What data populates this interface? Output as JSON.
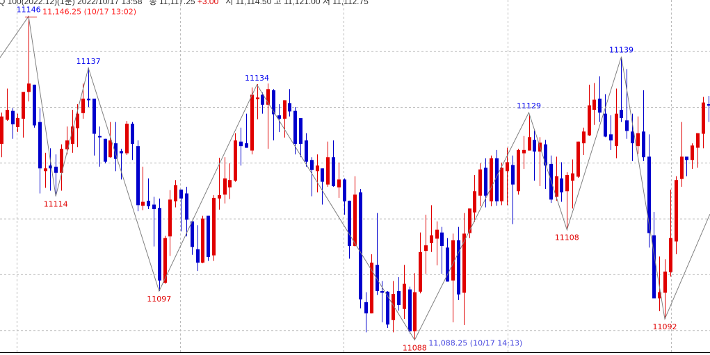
{
  "header": {
    "symbol_info": "Q 100(2022.12)(1분) 2022/10/17 13:58",
    "close_label": "종",
    "close_value": "11,117.25",
    "change": "+3.00",
    "open_label": "시",
    "open_value": "11,114.50",
    "high_label": "고",
    "high_value": "11,121.00",
    "low_label": "저",
    "low_value": "11,112.75"
  },
  "colors": {
    "up": "#e00000",
    "down": "#0000cc",
    "zigzag": "#808080",
    "grid": "#bbbbbb",
    "high_label": "#0000ee",
    "low_label": "#e00000",
    "max_note": "#ff2020",
    "min_note": "#4a4adf"
  },
  "chart_data": {
    "type": "candlestick",
    "ylim": [
      11085,
      11150
    ],
    "grid": true,
    "y_gridlines": [
      11090,
      11100,
      11110,
      11120,
      11130,
      11140
    ],
    "ohlc_order": [
      "open",
      "high",
      "low",
      "close"
    ],
    "candles": [
      [
        11123.4,
        11129.0,
        11121.0,
        11128.3
      ],
      [
        11127.7,
        11133.3,
        11127.5,
        11129.5
      ],
      [
        11129.3,
        11129.8,
        11124.3,
        11126.9
      ],
      [
        11126.4,
        11128.8,
        11125.5,
        11128.0
      ],
      [
        11127.9,
        11132.7,
        11124.5,
        11132.7
      ],
      [
        11132.7,
        11146.25,
        11131.0,
        11134.2
      ],
      [
        11134.0,
        11134.0,
        11126.3,
        11126.7
      ],
      [
        11127.3,
        11129.8,
        11114.5,
        11119.0
      ],
      [
        11118.5,
        11121.8,
        11115.5,
        11119.0
      ],
      [
        11119.5,
        11122.6,
        11115.0,
        11119.0
      ],
      [
        11119.3,
        11121.5,
        11114.0,
        11118.2
      ],
      [
        11118.2,
        11123.3,
        11115.0,
        11122.5
      ],
      [
        11122.4,
        11126.5,
        11121.5,
        11124.0
      ],
      [
        11123.4,
        11129.5,
        11121.8,
        11126.5
      ],
      [
        11126.2,
        11130.5,
        11122.8,
        11128.8
      ],
      [
        11128.9,
        11134.2,
        11127.9,
        11131.5
      ],
      [
        11131.5,
        11137.0,
        11130.0,
        11131.2
      ],
      [
        11131.5,
        11131.5,
        11121.3,
        11125.2
      ],
      [
        11124.8,
        11126.5,
        11119.3,
        11124.7
      ],
      [
        11124.3,
        11124.3,
        11119.9,
        11120.2
      ],
      [
        11121.0,
        11127.3,
        11120.9,
        11124.0
      ],
      [
        11123.5,
        11127.3,
        11118.5,
        11120.7
      ],
      [
        11122.1,
        11122.5,
        11117.0,
        11121.7
      ],
      [
        11121.7,
        11127.5,
        11121.4,
        11127.0
      ],
      [
        11127.0,
        11127.3,
        11120.5,
        11123.4
      ],
      [
        11123.0,
        11124.0,
        11111.3,
        11112.4
      ],
      [
        11112.3,
        11119.3,
        11111.5,
        11113.0
      ],
      [
        11113.2,
        11117.2,
        11111.7,
        11112.2
      ],
      [
        11112.5,
        11113.9,
        11105.0,
        11111.7
      ],
      [
        11111.9,
        11113.6,
        11097.0,
        11098.9
      ],
      [
        11098.5,
        11106.9,
        11098.3,
        11106.5
      ],
      [
        11106.8,
        11115.1,
        11103.3,
        11113.4
      ],
      [
        11113.1,
        11116.9,
        11112.0,
        11116.0
      ],
      [
        11115.2,
        11115.2,
        11107.7,
        11113.6
      ],
      [
        11114.5,
        11115.7,
        11106.8,
        11109.8
      ],
      [
        11109.5,
        11109.5,
        11103.5,
        11104.9
      ],
      [
        11104.5,
        11108.8,
        11100.6,
        11102.1
      ],
      [
        11102.1,
        11110.5,
        11102.0,
        11110.0
      ],
      [
        11110.5,
        11110.5,
        11102.4,
        11103.1
      ],
      [
        11103.4,
        11114.2,
        11102.4,
        11113.7
      ],
      [
        11113.6,
        11120.9,
        11111.6,
        11114.2
      ],
      [
        11114.3,
        11121.0,
        11112.7,
        11117.2
      ],
      [
        11115.6,
        11119.9,
        11113.5,
        11116.9
      ],
      [
        11116.8,
        11125.3,
        11116.6,
        11124.0
      ],
      [
        11123.8,
        11126.3,
        11119.5,
        11123.0
      ],
      [
        11123.5,
        11128.8,
        11122.7,
        11122.7
      ],
      [
        11122.2,
        11133.5,
        11121.5,
        11132.2
      ],
      [
        11131.4,
        11134.1,
        11127.8,
        11131.7
      ],
      [
        11132.2,
        11132.6,
        11128.8,
        11130.4
      ],
      [
        11130.4,
        11134.2,
        11122.5,
        11133.2
      ],
      [
        11133.0,
        11133.2,
        11124.0,
        11128.7
      ],
      [
        11128.5,
        11130.5,
        11125.5,
        11127.9
      ],
      [
        11127.9,
        11131.2,
        11124.5,
        11131.2
      ],
      [
        11130.7,
        11133.2,
        11128.3,
        11129.2
      ],
      [
        11129.3,
        11130.0,
        11121.5,
        11123.4
      ],
      [
        11128.0,
        11128.0,
        11121.0,
        11123.4
      ],
      [
        11124.0,
        11125.3,
        11119.3,
        11120.2
      ],
      [
        11120.5,
        11121.0,
        11114.0,
        11118.7
      ],
      [
        11118.5,
        11121.5,
        11114.7,
        11119.5
      ],
      [
        11119.0,
        11119.0,
        11112.5,
        11116.6
      ],
      [
        11116.1,
        11123.8,
        11115.7,
        11121.0
      ],
      [
        11121.0,
        11124.0,
        11115.7,
        11115.8
      ],
      [
        11115.6,
        11120.0,
        11113.7,
        11117.0
      ],
      [
        11117.0,
        11117.2,
        11110.7,
        11113.1
      ],
      [
        11113.2,
        11113.2,
        11102.8,
        11105.1
      ],
      [
        11105.1,
        11117.6,
        11105.0,
        11114.3
      ],
      [
        11114.7,
        11115.3,
        11093.9,
        11095.5
      ],
      [
        11095.0,
        11096.8,
        11089.6,
        11093.0
      ],
      [
        11093.0,
        11103.6,
        11093.0,
        11102.1
      ],
      [
        11101.7,
        11111.0,
        11096.3,
        11097.0
      ],
      [
        11097.0,
        11098.8,
        11091.4,
        11096.7
      ],
      [
        11096.9,
        11097.0,
        11090.4,
        11091.0
      ],
      [
        11091.8,
        11098.8,
        11089.6,
        11096.5
      ],
      [
        11097.0,
        11099.5,
        11093.5,
        11094.5
      ],
      [
        11093.8,
        11101.7,
        11092.0,
        11098.3
      ],
      [
        11097.3,
        11097.8,
        11089.4,
        11089.8
      ],
      [
        11089.8,
        11100.2,
        11088.25,
        11096.8
      ],
      [
        11096.9,
        11107.5,
        11096.6,
        11104.0
      ],
      [
        11104.2,
        11110.7,
        11100.1,
        11105.2
      ],
      [
        11105.6,
        11112.4,
        11104.0,
        11107.0
      ],
      [
        11106.4,
        11109.5,
        11101.6,
        11108.0
      ],
      [
        11107.5,
        11108.5,
        11100.1,
        11105.1
      ],
      [
        11104.8,
        11106.5,
        11098.7,
        11098.7
      ],
      [
        11098.9,
        11107.3,
        11091.4,
        11106.1
      ],
      [
        11106.1,
        11108.5,
        11095.4,
        11096.4
      ],
      [
        11096.7,
        11111.0,
        11090.9,
        11107.3
      ],
      [
        11107.4,
        11111.8,
        11106.5,
        11111.8
      ],
      [
        11111.1,
        11117.8,
        11109.4,
        11114.9
      ],
      [
        11114.1,
        11119.9,
        11112.2,
        11118.8
      ],
      [
        11119.1,
        11120.8,
        11112.0,
        11114.1
      ],
      [
        11113.1,
        11121.3,
        11112.2,
        11120.8
      ],
      [
        11120.8,
        11122.3,
        11112.3,
        11113.1
      ],
      [
        11113.1,
        11120.0,
        11112.4,
        11119.1
      ],
      [
        11118.5,
        11122.7,
        11112.4,
        11120.1
      ],
      [
        11119.6,
        11121.3,
        11109.0,
        11116.1
      ],
      [
        11114.9,
        11122.5,
        11114.3,
        11122.3
      ],
      [
        11121.7,
        11124.8,
        11118.9,
        11122.3
      ],
      [
        11122.2,
        11128.6,
        11122.2,
        11124.6
      ],
      [
        11124.1,
        11125.8,
        11116.8,
        11122.0
      ],
      [
        11122.0,
        11124.6,
        11115.8,
        11123.6
      ],
      [
        11123.3,
        11124.1,
        11115.3,
        11119.5
      ],
      [
        11119.8,
        11121.3,
        11112.8,
        11113.4
      ],
      [
        11113.9,
        11121.1,
        11113.2,
        11117.6
      ],
      [
        11117.2,
        11120.1,
        11113.0,
        11114.7
      ],
      [
        11114.9,
        11118.3,
        11107.9,
        11117.8
      ],
      [
        11116.8,
        11120.6,
        11111.8,
        11118.1
      ],
      [
        11117.5,
        11123.8,
        11117.3,
        11123.8
      ],
      [
        11123.5,
        11126.3,
        11121.4,
        11125.6
      ],
      [
        11124.9,
        11134.0,
        11124.8,
        11130.3
      ],
      [
        11129.5,
        11134.3,
        11126.8,
        11131.3
      ],
      [
        11131.5,
        11135.5,
        11127.3,
        11129.0
      ],
      [
        11128.8,
        11132.3,
        11124.6,
        11124.7
      ],
      [
        11125.1,
        11128.5,
        11122.3,
        11124.0
      ],
      [
        11123.0,
        11133.3,
        11120.8,
        11128.8
      ],
      [
        11129.5,
        11139.0,
        11127.3,
        11128.0
      ],
      [
        11127.6,
        11136.8,
        11124.3,
        11125.7
      ],
      [
        11125.6,
        11128.8,
        11120.3,
        11123.5
      ],
      [
        11123.0,
        11128.3,
        11121.6,
        11125.3
      ],
      [
        11125.6,
        11133.0,
        11120.3,
        11121.0
      ],
      [
        11121.1,
        11125.1,
        11104.8,
        11107.4
      ],
      [
        11107.0,
        11111.2,
        11095.7,
        11095.7
      ],
      [
        11095.7,
        11103.2,
        11093.4,
        11096.8
      ],
      [
        11096.7,
        11102.7,
        11092.0,
        11100.5
      ],
      [
        11100.4,
        11115.2,
        11099.6,
        11106.5
      ],
      [
        11105.9,
        11117.6,
        11103.6,
        11116.9
      ],
      [
        11117.1,
        11127.3,
        11115.7,
        11121.1
      ],
      [
        11121.1,
        11121.1,
        11117.6,
        11120.5
      ],
      [
        11120.5,
        11123.5,
        11118.9,
        11123.1
      ],
      [
        11122.7,
        11125.3,
        11119.1,
        11125.3
      ],
      [
        11125.2,
        11131.8,
        11122.6,
        11130.8
      ],
      [
        11130.5,
        11132.0,
        11127.3,
        11130.3
      ]
    ],
    "zigzag": [
      {
        "index": -0.3,
        "value": 11138.8
      },
      {
        "index": 5,
        "value": 11146.25,
        "label": "11146",
        "type": "high",
        "note": "11,146.25 (10/17 13:02)"
      },
      {
        "index": 10,
        "value": 11114,
        "label": "11114",
        "type": "low"
      },
      {
        "index": 16,
        "value": 11137,
        "label": "11137",
        "type": "high"
      },
      {
        "index": 29,
        "value": 11097,
        "label": "11097",
        "type": "low"
      },
      {
        "index": 47,
        "value": 11134,
        "label": "11134",
        "type": "high"
      },
      {
        "index": 76,
        "value": 11088.25,
        "label": "11088",
        "type": "low",
        "note": "11,088.25 (10/17 14:13)"
      },
      {
        "index": 97,
        "value": 11129,
        "label": "11129",
        "type": "high"
      },
      {
        "index": 104,
        "value": 11108,
        "label": "11108",
        "type": "low"
      },
      {
        "index": 114,
        "value": 11139,
        "label": "11139",
        "type": "high"
      },
      {
        "index": 122,
        "value": 11092,
        "label": "11092",
        "type": "low"
      },
      {
        "index": 130.3,
        "value": 11110.8
      }
    ]
  }
}
